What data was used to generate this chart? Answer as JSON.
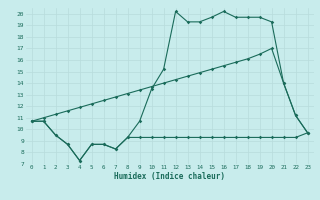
{
  "xlabel": "Humidex (Indice chaleur)",
  "background_color": "#c8ecec",
  "grid_color": "#b8dcdc",
  "line_color": "#1a6b5a",
  "xlim": [
    -0.5,
    23.5
  ],
  "ylim": [
    7,
    20.5
  ],
  "yticks": [
    7,
    8,
    9,
    10,
    11,
    12,
    13,
    14,
    15,
    16,
    17,
    18,
    19,
    20
  ],
  "xticks": [
    0,
    1,
    2,
    3,
    4,
    5,
    6,
    7,
    8,
    9,
    10,
    11,
    12,
    13,
    14,
    15,
    16,
    17,
    18,
    19,
    20,
    21,
    22,
    23
  ],
  "series1_x": [
    0,
    1,
    2,
    3,
    4,
    5,
    6,
    7,
    8,
    9,
    10,
    11,
    12,
    13,
    14,
    15,
    16,
    17,
    18,
    19,
    20,
    21,
    22,
    23
  ],
  "series1_y": [
    10.7,
    10.7,
    9.5,
    8.7,
    7.3,
    8.7,
    8.7,
    8.3,
    9.3,
    10.7,
    13.5,
    15.2,
    20.2,
    19.3,
    19.3,
    19.7,
    20.2,
    19.7,
    19.7,
    19.7,
    19.3,
    14.0,
    11.2,
    9.7
  ],
  "series2_x": [
    0,
    1,
    2,
    3,
    4,
    5,
    6,
    7,
    8,
    9,
    10,
    11,
    12,
    13,
    14,
    15,
    16,
    17,
    18,
    19,
    20,
    21,
    22,
    23
  ],
  "series2_y": [
    10.7,
    10.7,
    9.5,
    8.7,
    7.3,
    8.7,
    8.7,
    8.3,
    9.3,
    9.3,
    9.3,
    9.3,
    9.3,
    9.3,
    9.3,
    9.3,
    9.3,
    9.3,
    9.3,
    9.3,
    9.3,
    9.3,
    9.3,
    9.7
  ],
  "series3_x": [
    0,
    1,
    2,
    3,
    4,
    5,
    6,
    7,
    8,
    9,
    10,
    11,
    12,
    13,
    14,
    15,
    16,
    17,
    18,
    19,
    20,
    21,
    22,
    23
  ],
  "series3_y": [
    10.7,
    11.0,
    11.3,
    11.6,
    11.9,
    12.2,
    12.5,
    12.8,
    13.1,
    13.4,
    13.7,
    14.0,
    14.3,
    14.6,
    14.9,
    15.2,
    15.5,
    15.8,
    16.1,
    16.5,
    17.0,
    14.0,
    11.2,
    9.7
  ]
}
